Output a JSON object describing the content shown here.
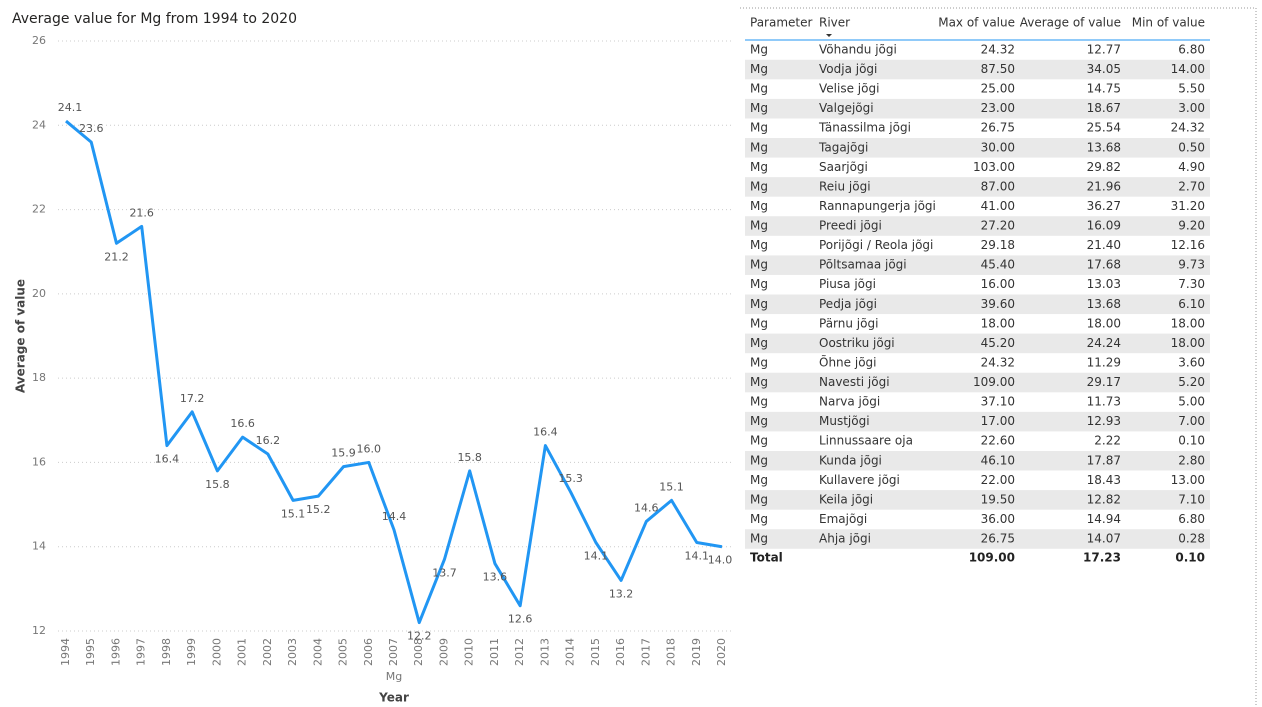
{
  "chart_data": {
    "type": "line",
    "title": "Average value for Mg from 1994 to 2020",
    "x_label": "Year",
    "y_label": "Average of value",
    "categories": [
      "1994",
      "1995",
      "1996",
      "1997",
      "1998",
      "1999",
      "2000",
      "2001",
      "2002",
      "2003",
      "2004",
      "2005",
      "2006",
      "2007",
      "2008",
      "2009",
      "2010",
      "2011",
      "2012",
      "2013",
      "2014",
      "2015",
      "2016",
      "2017",
      "2018",
      "2019",
      "2020"
    ],
    "series": [
      {
        "name": "Mg",
        "color": "#2196f3",
        "values": [
          24.1,
          23.6,
          21.2,
          21.6,
          16.4,
          17.2,
          15.8,
          16.6,
          16.2,
          15.1,
          15.2,
          15.9,
          16.0,
          14.4,
          12.2,
          13.7,
          15.8,
          13.6,
          12.6,
          16.4,
          15.3,
          14.1,
          13.2,
          14.6,
          15.1,
          14.1,
          14.0
        ],
        "value_labels": [
          "24.1",
          "23.6",
          "21.2",
          "21.6",
          "16.4",
          "17.2",
          "15.8",
          "16.6",
          "16.2",
          "15.1",
          "15.2",
          "15.9",
          "16.0",
          "14.4",
          "12.2",
          "13.7",
          "15.8",
          "13.6",
          "12.6",
          "16.4",
          "15.3",
          "14.1",
          "13.2",
          "14.6",
          "15.1",
          "14.1",
          "14.0"
        ]
      }
    ],
    "ylim": [
      12,
      26
    ],
    "yticks": [
      12,
      14,
      16,
      18,
      20,
      22,
      24,
      26
    ],
    "grid": true
  },
  "table": {
    "columns": [
      "Parameter",
      "River",
      "Max of value",
      "Average of value",
      "Min of value"
    ],
    "rows": [
      [
        "Mg",
        "Võhandu jõgi",
        "24.32",
        "12.77",
        "6.80"
      ],
      [
        "Mg",
        "Vodja jõgi",
        "87.50",
        "34.05",
        "14.00"
      ],
      [
        "Mg",
        "Velise jõgi",
        "25.00",
        "14.75",
        "5.50"
      ],
      [
        "Mg",
        "Valgejõgi",
        "23.00",
        "18.67",
        "3.00"
      ],
      [
        "Mg",
        "Tänassilma jõgi",
        "26.75",
        "25.54",
        "24.32"
      ],
      [
        "Mg",
        "Tagajõgi",
        "30.00",
        "13.68",
        "0.50"
      ],
      [
        "Mg",
        "Saarjõgi",
        "103.00",
        "29.82",
        "4.90"
      ],
      [
        "Mg",
        "Reiu jõgi",
        "87.00",
        "21.96",
        "2.70"
      ],
      [
        "Mg",
        "Rannapungerja jõgi",
        "41.00",
        "36.27",
        "31.20"
      ],
      [
        "Mg",
        "Preedi jõgi",
        "27.20",
        "16.09",
        "9.20"
      ],
      [
        "Mg",
        "Porijõgi / Reola jõgi",
        "29.18",
        "21.40",
        "12.16"
      ],
      [
        "Mg",
        "Põltsamaa jõgi",
        "45.40",
        "17.68",
        "9.73"
      ],
      [
        "Mg",
        "Piusa jõgi",
        "16.00",
        "13.03",
        "7.30"
      ],
      [
        "Mg",
        "Pedja jõgi",
        "39.60",
        "13.68",
        "6.10"
      ],
      [
        "Mg",
        "Pärnu jõgi",
        "18.00",
        "18.00",
        "18.00"
      ],
      [
        "Mg",
        "Oostriku jõgi",
        "45.20",
        "24.24",
        "18.00"
      ],
      [
        "Mg",
        "Õhne jõgi",
        "24.32",
        "11.29",
        "3.60"
      ],
      [
        "Mg",
        "Navesti jõgi",
        "109.00",
        "29.17",
        "5.20"
      ],
      [
        "Mg",
        "Narva jõgi",
        "37.10",
        "11.73",
        "5.00"
      ],
      [
        "Mg",
        "Mustjõgi",
        "17.00",
        "12.93",
        "7.00"
      ],
      [
        "Mg",
        "Linnussaare oja",
        "22.60",
        "2.22",
        "0.10"
      ],
      [
        "Mg",
        "Kunda jõgi",
        "46.10",
        "17.87",
        "2.80"
      ],
      [
        "Mg",
        "Kullavere jõgi",
        "22.00",
        "18.43",
        "13.00"
      ],
      [
        "Mg",
        "Keila jõgi",
        "19.50",
        "12.82",
        "7.10"
      ],
      [
        "Mg",
        "Emajõgi",
        "36.00",
        "14.94",
        "6.80"
      ],
      [
        "Mg",
        "Ahja jõgi",
        "26.75",
        "14.07",
        "0.28"
      ]
    ],
    "total": {
      "label": "Total",
      "values": [
        "109.00",
        "17.23",
        "0.10"
      ]
    }
  }
}
